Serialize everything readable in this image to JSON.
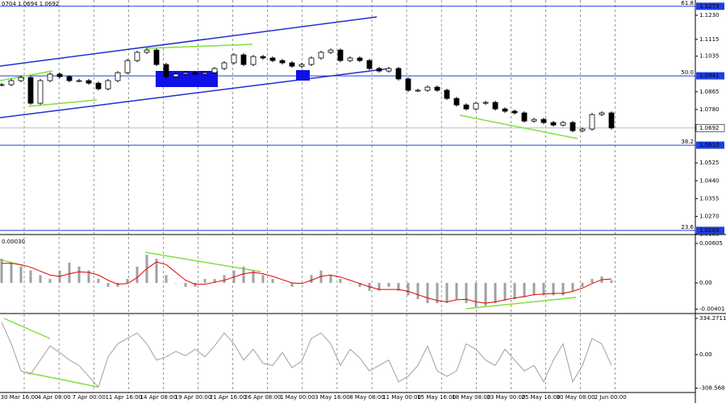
{
  "chart_data": [
    {
      "type": "candlestick",
      "header": "0704 1.0694 1.0692",
      "color": "#000000",
      "values": [
        1.0899,
        1.0918,
        1.0933,
        1.081,
        1.0918,
        1.0949,
        1.0937,
        1.0918,
        1.0918,
        1.0906,
        1.0879,
        1.0918,
        1.0956,
        1.1014,
        1.1053,
        1.1064,
        1.0995,
        1.0937,
        1.0949,
        1.0956,
        1.0949,
        1.0956,
        1.0976,
        1.1003,
        1.1041,
        1.0995,
        1.1033,
        1.1026,
        1.1014,
        1.1003,
        1.0987,
        1.0995,
        1.1026,
        1.1053,
        1.1064,
        1.1014,
        1.1026,
        1.1014,
        1.0976,
        1.0964,
        1.0976,
        1.0926,
        1.0872,
        1.0872,
        1.0887,
        1.0872,
        1.0833,
        1.0802,
        1.0783,
        1.081,
        1.0814,
        1.0783,
        1.0772,
        1.0764,
        1.0725,
        1.0733,
        1.0718,
        1.0706,
        1.0718,
        1.0679,
        1.0687,
        1.0756,
        1.0764,
        1.0692
      ],
      "ylim": [
        1.0187,
        1.1303
      ],
      "yticks": [
        {
          "value": 1.123,
          "label": "1.1230"
        },
        1.1115,
        1.1035,
        1.0865,
        {
          "value": 1.078,
          "label": "1.0780"
        },
        1.0525,
        {
          "value": 1.044,
          "label": "1.0440"
        },
        1.0355,
        {
          "value": 1.027,
          "label": "1.0270"
        },
        1.0185
      ],
      "levels": [
        {
          "name": "61.8",
          "value": 1.1273,
          "label": "1.1273"
        },
        {
          "name": "50.0",
          "value": 1.0941,
          "label": "1.0941"
        },
        {
          "name": "38.2",
          "value": 1.061,
          "label": "1.0610"
        },
        {
          "name": "23.6",
          "value": 1.0203,
          "label": "1.0203"
        }
      ],
      "level_color": "#1f3fe0",
      "current": 1.0692,
      "xticks": [
        "30 Mar 16:00",
        "4 Apr 08:00",
        "7 Apr 00:00",
        "11 Apr 16:00",
        "14 Apr 08:00",
        "19 Apr 00:00",
        "21 Apr 16:00",
        "26 Apr 08:00",
        "1 May 00:00",
        "3 May 16:00",
        "8 May 08:00",
        "11 May 00:00",
        "15 May 16:00",
        "18 May 08:00",
        "23 May 00:00",
        "25 May 16:00",
        "30 May 08:00",
        "2 Jun 00:00"
      ]
    },
    {
      "type": "macd",
      "label": "0.00030",
      "color": "#a0a0a0",
      "signal_color": "#e00000",
      "values": [
        0.0037,
        0.0031,
        0.0025,
        0.0019,
        0.0012,
        0.0006,
        0.0019,
        0.0031,
        0.0025,
        0.0019,
        0.0006,
        -0.0006,
        -0.0006,
        0.0006,
        0.0025,
        0.0043,
        0.0037,
        0.0012,
        0,
        -0.0006,
        -0.0006,
        0.0006,
        0.0006,
        0.0012,
        0.0019,
        0.0025,
        0.0019,
        0.0012,
        0.0006,
        0,
        -0.0006,
        0,
        0.0012,
        0.0019,
        0.0012,
        0.0006,
        0,
        -0.0006,
        -0.0012,
        -0.0012,
        -0.0006,
        -0.0012,
        -0.0019,
        -0.0025,
        -0.0031,
        -0.0031,
        -0.0031,
        -0.0025,
        -0.0031,
        -0.0037,
        -0.0035,
        -0.0031,
        -0.0027,
        -0.0025,
        -0.0022,
        -0.0019,
        -0.0019,
        -0.0019,
        -0.0019,
        -0.0012,
        -0.0006,
        0.0006,
        0.001,
        0.0004
      ],
      "signal": [
        0.003,
        0.003,
        0.0028,
        0.0024,
        0.0018,
        0.0012,
        0.001,
        0.0014,
        0.0017,
        0.0016,
        0.0012,
        0.0004,
        -0.0002,
        -0.0001,
        0.0008,
        0.0022,
        0.0032,
        0.0028,
        0.0016,
        0.0004,
        -0.0002,
        -0.0002,
        0.0001,
        0.0004,
        0.0009,
        0.0014,
        0.0016,
        0.0014,
        0.001,
        0.0005,
        0,
        -0.0001,
        0.0004,
        0.001,
        0.0012,
        0.0009,
        0.0004,
        -0.0001,
        -0.0006,
        -0.001,
        -0.001,
        -0.001,
        -0.0013,
        -0.0018,
        -0.0023,
        -0.0027,
        -0.0029,
        -0.0026,
        -0.0025,
        -0.0029,
        -0.0031,
        -0.0029,
        -0.0026,
        -0.0023,
        -0.0021,
        -0.0018,
        -0.0017,
        -0.0016,
        -0.0016,
        -0.0013,
        -0.0008,
        -0.0001,
        0.0005,
        0.0006
      ],
      "ylim": [
        -0.00457,
        0.00716
      ],
      "yticks": [
        0.00605,
        {
          "value": 0,
          "label": "0.00"
        },
        -0.00401
      ]
    },
    {
      "type": "cci",
      "color": "#a0a0a0",
      "values": [
        300,
        100,
        -150,
        -180,
        -50,
        80,
        20,
        -50,
        -100,
        -200,
        -300,
        -20,
        100,
        150,
        200,
        100,
        -50,
        -20,
        30,
        -10,
        50,
        -20,
        80,
        200,
        100,
        -50,
        50,
        -80,
        -100,
        20,
        -120,
        -60,
        150,
        200,
        100,
        -100,
        50,
        -30,
        -150,
        -100,
        -50,
        -250,
        -200,
        -100,
        80,
        -150,
        -200,
        -150,
        100,
        50,
        -50,
        -100,
        50,
        -50,
        -150,
        -100,
        -250,
        -50,
        100,
        -250,
        -100,
        150,
        100,
        -100
      ],
      "ylim": [
        -349,
        364
      ],
      "yticks": [
        334.2711,
        {
          "value": 0,
          "label": "0.00"
        },
        -308.568
      ]
    }
  ]
}
